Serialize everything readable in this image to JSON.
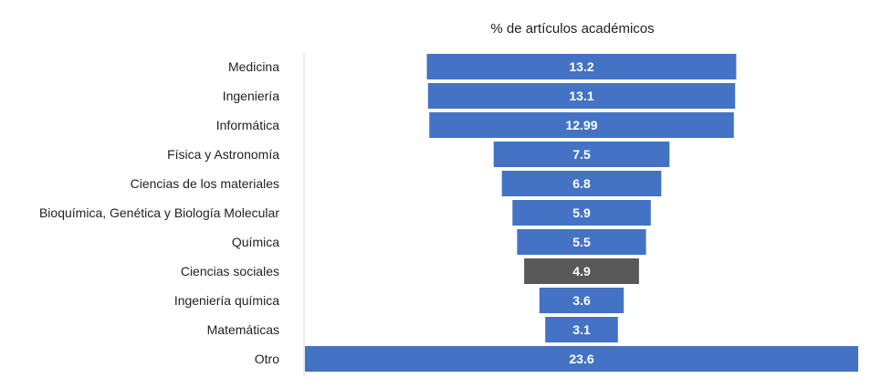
{
  "chart_data": {
    "type": "bar",
    "orientation": "horizontal-funnel",
    "title": "% de artículos académicos",
    "categories": [
      "Medicina",
      "Ingeniería",
      "Informática",
      "Física y Astronomía",
      "Ciencias de los materiales",
      "Bioquímica, Genética y Biología Molecular",
      "Química",
      "Ciencias sociales",
      "Ingeniería química",
      "Matemáticas",
      "Otro"
    ],
    "values": [
      13.2,
      13.1,
      12.99,
      7.5,
      6.8,
      5.9,
      5.5,
      4.9,
      3.6,
      3.1,
      23.6
    ],
    "value_labels": [
      "13.2",
      "13.1",
      "12.99",
      "7.5",
      "6.8",
      "5.9",
      "5.5",
      "4.9",
      "3.6",
      "3.1",
      "23.6"
    ],
    "highlight_category": "Ciencias sociales",
    "xlim": [
      0,
      23.6
    ],
    "grid": false,
    "legend": "none",
    "colors": {
      "bar": "#4472C4",
      "highlight": "#595959",
      "value_label": "#FFFFFF",
      "text": "#222222",
      "axis": "#D9D9D9"
    }
  }
}
